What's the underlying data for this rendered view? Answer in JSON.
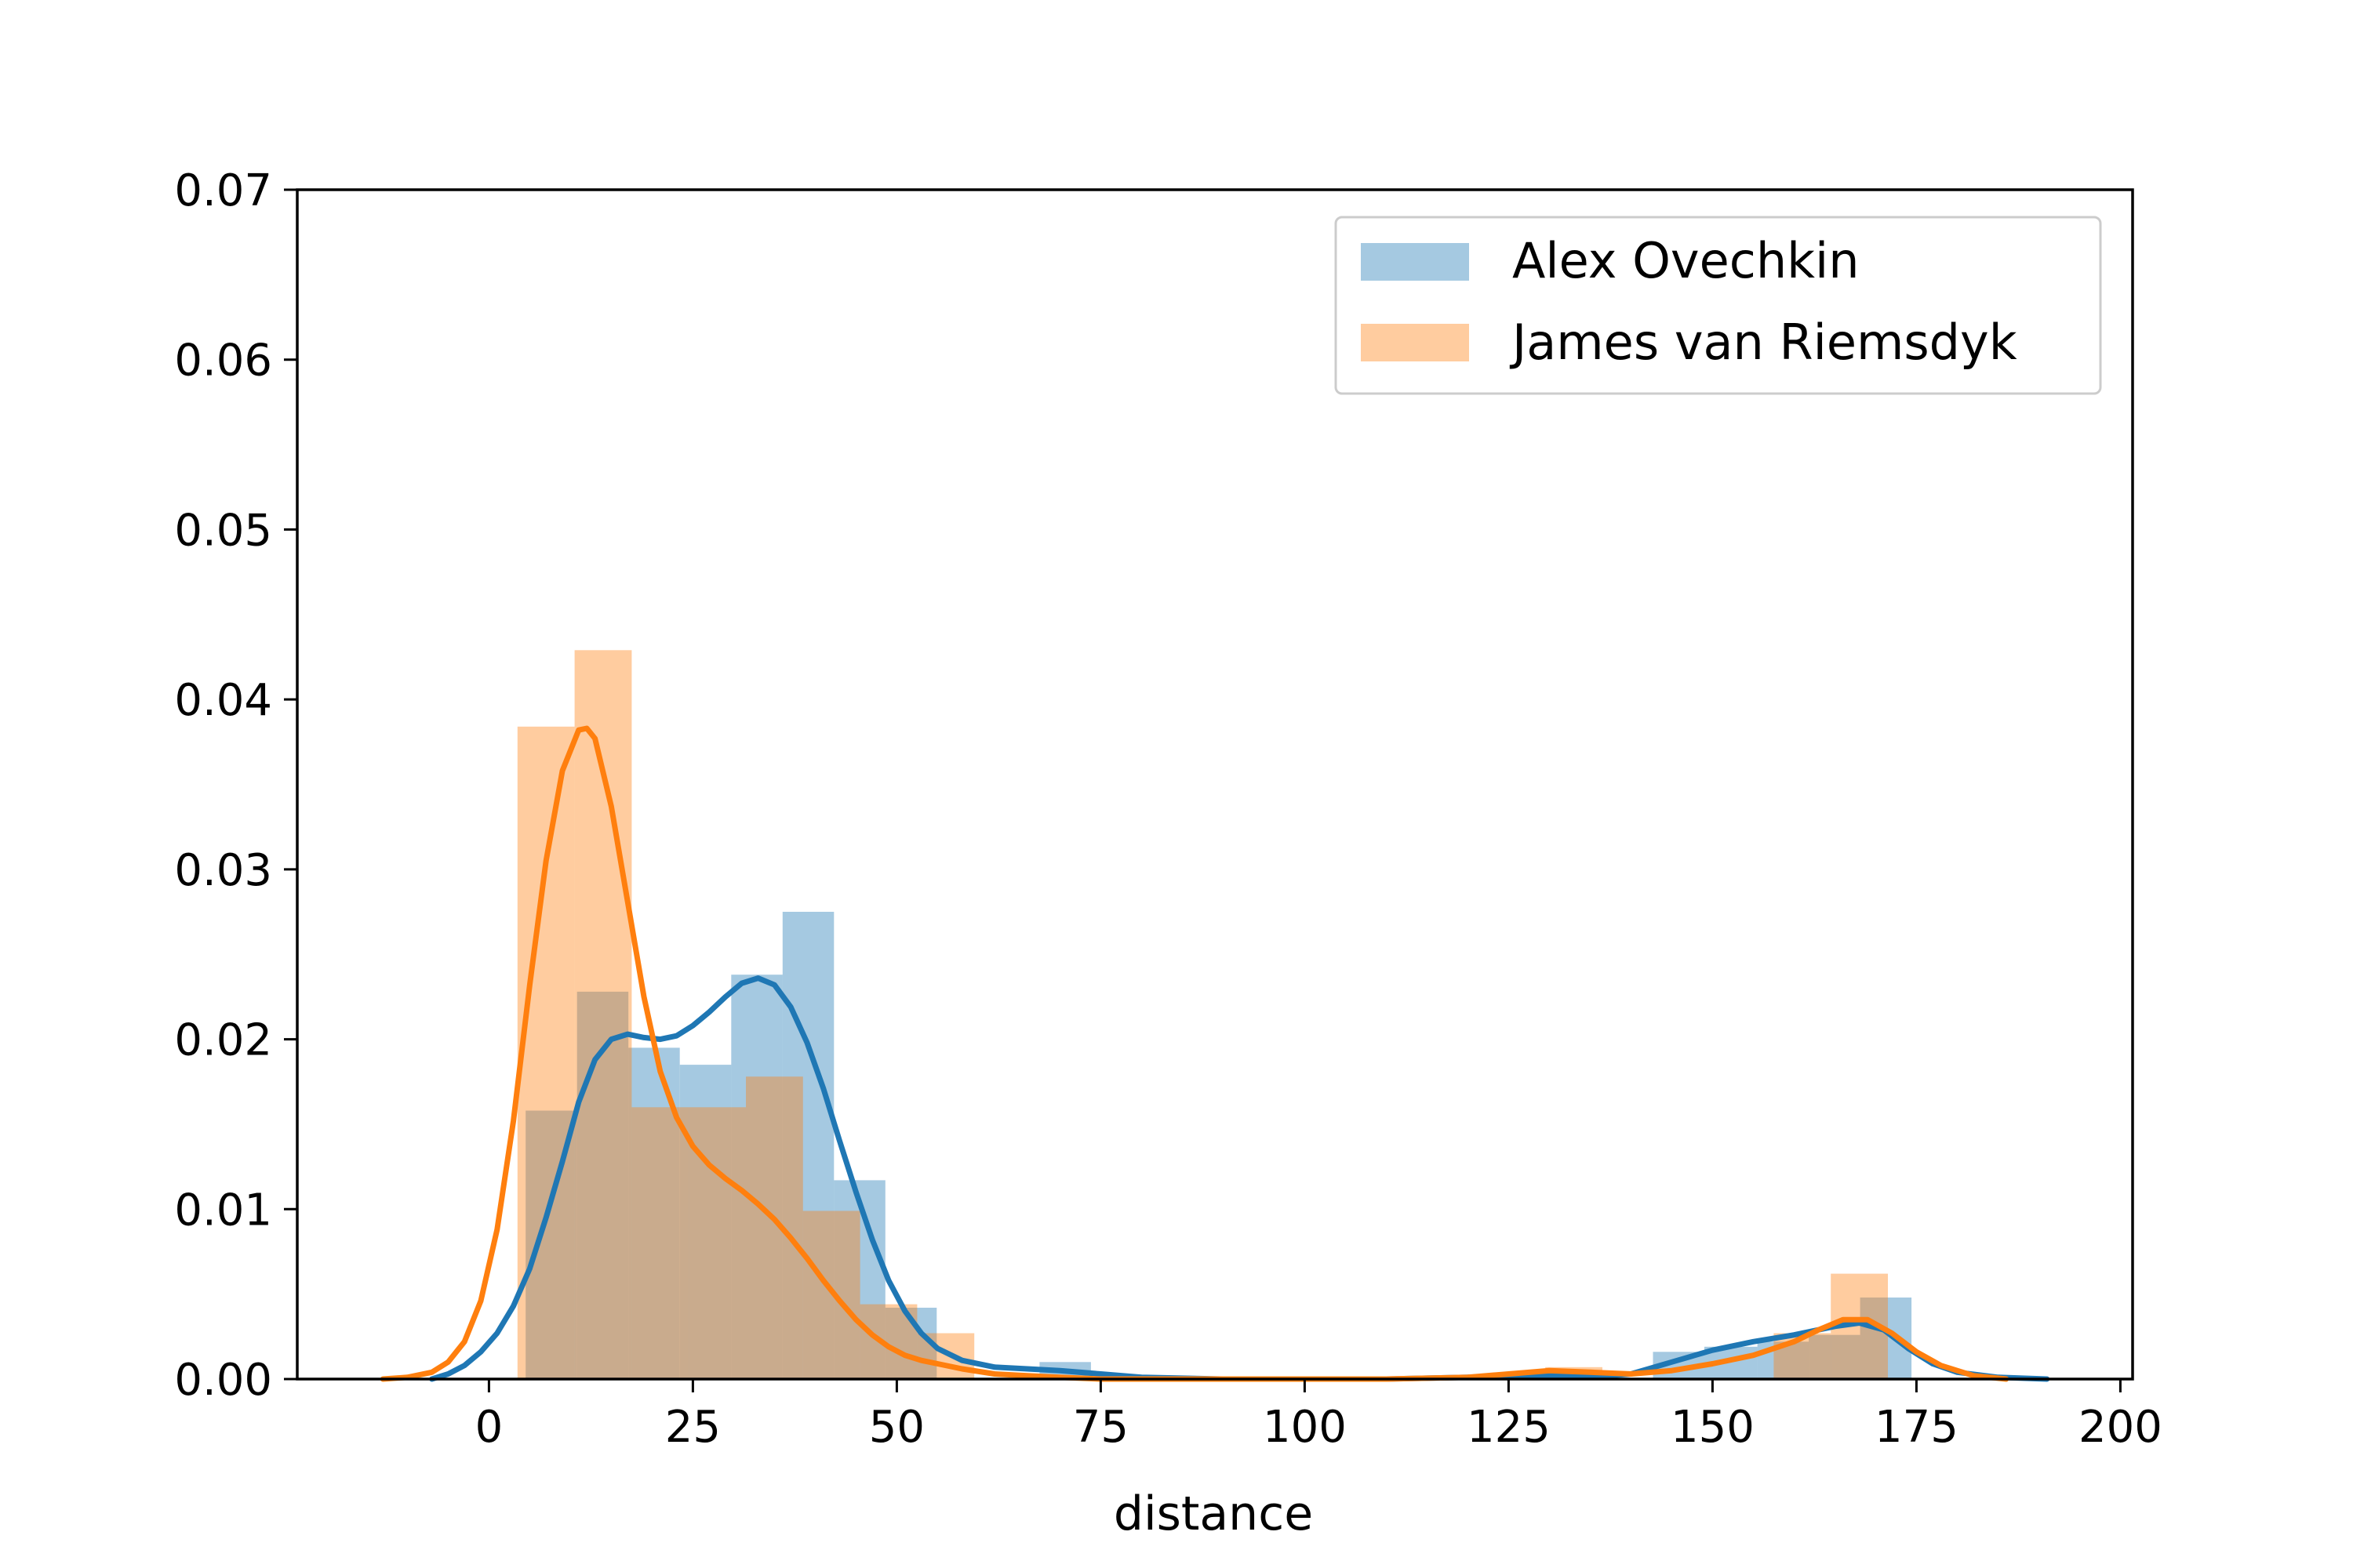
{
  "chart_data": {
    "type": "histogram+kde",
    "xlabel": "distance",
    "ylabel": "",
    "xlim": [
      -23.5,
      201.5
    ],
    "ylim": [
      0,
      0.07
    ],
    "x_ticks": [
      0,
      25,
      50,
      75,
      100,
      125,
      150,
      175,
      200
    ],
    "x_tick_labels": [
      "0",
      "25",
      "50",
      "75",
      "100",
      "125",
      "150",
      "175",
      "200"
    ],
    "y_ticks": [
      0.0,
      0.01,
      0.02,
      0.03,
      0.04,
      0.05,
      0.06,
      0.07
    ],
    "y_tick_labels": [
      "0.00",
      "0.01",
      "0.02",
      "0.03",
      "0.04",
      "0.05",
      "0.06",
      "0.07"
    ],
    "grid": false,
    "legend_position": "top-right",
    "series": [
      {
        "name": "Alex Ovechkin",
        "color": "#1f77b4",
        "bins": [
          {
            "x0": 4.5,
            "x1": 10.8,
            "value": 0.0158
          },
          {
            "x0": 10.8,
            "x1": 17.1,
            "value": 0.0228
          },
          {
            "x0": 17.1,
            "x1": 23.4,
            "value": 0.0195
          },
          {
            "x0": 23.4,
            "x1": 29.7,
            "value": 0.0185
          },
          {
            "x0": 29.7,
            "x1": 36.0,
            "value": 0.0238
          },
          {
            "x0": 36.0,
            "x1": 42.3,
            "value": 0.0275
          },
          {
            "x0": 42.3,
            "x1": 48.6,
            "value": 0.0117
          },
          {
            "x0": 48.6,
            "x1": 54.9,
            "value": 0.0042
          },
          {
            "x0": 54.9,
            "x1": 61.2,
            "value": 0.0
          },
          {
            "x0": 61.2,
            "x1": 67.5,
            "value": 0.0
          },
          {
            "x0": 67.5,
            "x1": 73.8,
            "value": 0.001
          },
          {
            "x0": 73.8,
            "x1": 80.1,
            "value": 0.0
          },
          {
            "x0": 124.2,
            "x1": 130.5,
            "value": 0.0003
          },
          {
            "x0": 130.5,
            "x1": 136.8,
            "value": 0.0005
          },
          {
            "x0": 142.7,
            "x1": 149.0,
            "value": 0.0016
          },
          {
            "x0": 149.0,
            "x1": 155.5,
            "value": 0.0019
          },
          {
            "x0": 155.5,
            "x1": 161.8,
            "value": 0.0022
          },
          {
            "x0": 161.8,
            "x1": 168.1,
            "value": 0.0026
          },
          {
            "x0": 168.1,
            "x1": 174.4,
            "value": 0.0048
          }
        ],
        "kde": {
          "x": [
            -7,
            -5,
            -3,
            -1,
            1,
            3,
            5,
            7,
            9,
            11,
            13,
            15,
            17,
            19,
            21,
            23,
            25,
            27,
            29,
            31,
            33,
            35,
            37,
            39,
            41,
            43,
            45,
            47,
            49,
            51,
            53,
            55,
            58,
            62,
            66,
            70,
            75,
            80,
            90,
            100,
            110,
            120,
            125,
            130,
            135,
            140,
            145,
            150,
            155,
            160,
            165,
            168,
            171,
            174,
            177,
            180,
            185,
            191
          ],
          "y": [
            0.0,
            0.0003,
            0.0008,
            0.0016,
            0.0027,
            0.0043,
            0.0065,
            0.0095,
            0.0128,
            0.0163,
            0.0188,
            0.02,
            0.0203,
            0.0201,
            0.02,
            0.0202,
            0.0208,
            0.0216,
            0.0225,
            0.0233,
            0.0236,
            0.0232,
            0.0219,
            0.0198,
            0.0171,
            0.014,
            0.011,
            0.0082,
            0.0058,
            0.004,
            0.0027,
            0.0018,
            0.0011,
            0.0007,
            0.0006,
            0.0005,
            0.0003,
            0.0001,
            0.0,
            0.0,
            0.0,
            0.0001,
            0.0002,
            0.0002,
            0.0001,
            0.0003,
            0.001,
            0.0017,
            0.0022,
            0.0026,
            0.0031,
            0.0033,
            0.0029,
            0.0018,
            0.0009,
            0.0004,
            0.0001,
            0.0
          ]
        }
      },
      {
        "name": "James van Riemsdyk",
        "color": "#ff7f0e",
        "bins": [
          {
            "x0": 3.5,
            "x1": 10.5,
            "value": 0.0384
          },
          {
            "x0": 10.5,
            "x1": 17.5,
            "value": 0.0429
          },
          {
            "x0": 17.5,
            "x1": 24.5,
            "value": 0.016
          },
          {
            "x0": 24.5,
            "x1": 31.5,
            "value": 0.016
          },
          {
            "x0": 31.5,
            "x1": 38.5,
            "value": 0.0178
          },
          {
            "x0": 38.5,
            "x1": 45.5,
            "value": 0.0099
          },
          {
            "x0": 45.5,
            "x1": 52.5,
            "value": 0.0044
          },
          {
            "x0": 52.5,
            "x1": 59.5,
            "value": 0.0027
          },
          {
            "x0": 129.5,
            "x1": 136.5,
            "value": 0.0007
          },
          {
            "x0": 157.5,
            "x1": 164.5,
            "value": 0.0027
          },
          {
            "x0": 164.5,
            "x1": 171.5,
            "value": 0.0062
          }
        ],
        "kde": {
          "x": [
            -13,
            -10,
            -7,
            -5,
            -3,
            -1,
            1,
            3,
            5,
            7,
            9,
            11,
            12,
            13,
            15,
            17,
            19,
            21,
            23,
            25,
            27,
            29,
            31,
            33,
            35,
            37,
            39,
            41,
            43,
            45,
            47,
            49,
            51,
            53,
            55,
            58,
            62,
            66,
            70,
            75,
            80,
            90,
            100,
            110,
            120,
            125,
            130,
            135,
            140,
            145,
            150,
            155,
            160,
            163,
            166,
            169,
            172,
            175,
            178,
            182,
            186
          ],
          "y": [
            0.0,
            0.0001,
            0.0004,
            0.001,
            0.0022,
            0.0046,
            0.0088,
            0.0152,
            0.0232,
            0.0305,
            0.0358,
            0.0382,
            0.0383,
            0.0377,
            0.0337,
            0.0281,
            0.0225,
            0.0181,
            0.0154,
            0.0137,
            0.0126,
            0.0118,
            0.0111,
            0.0103,
            0.0094,
            0.0083,
            0.0071,
            0.0058,
            0.0046,
            0.0035,
            0.0026,
            0.0019,
            0.0014,
            0.0011,
            0.0009,
            0.0006,
            0.0003,
            0.0002,
            0.0001,
            0.0,
            0.0,
            0.0,
            0.0,
            0.0,
            0.0001,
            0.0003,
            0.0005,
            0.0004,
            0.0003,
            0.0005,
            0.0009,
            0.0014,
            0.0022,
            0.0029,
            0.0035,
            0.0035,
            0.0027,
            0.0016,
            0.0008,
            0.0002,
            0.0
          ]
        }
      }
    ]
  }
}
